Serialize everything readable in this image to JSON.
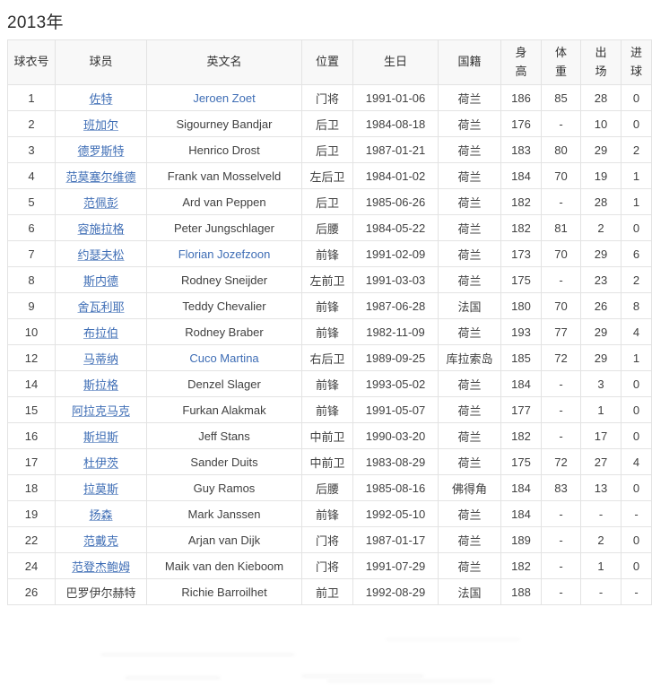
{
  "page": {
    "title": "2013年"
  },
  "colors": {
    "link": "#3e6db5",
    "header_bg": "#f8f8f8",
    "border": "#e3e3e3",
    "text": "#404040",
    "title": "#2b2b2b"
  },
  "table": {
    "columns": [
      {
        "key": "no",
        "label": "球衣号",
        "two_line": false
      },
      {
        "key": "player",
        "label": "球员",
        "two_line": false
      },
      {
        "key": "en_name",
        "label": "英文名",
        "two_line": false
      },
      {
        "key": "pos",
        "label": "位置",
        "two_line": false
      },
      {
        "key": "birth",
        "label": "生日",
        "two_line": false
      },
      {
        "key": "nat",
        "label": "国籍",
        "two_line": false
      },
      {
        "key": "height",
        "label": "身高",
        "two_line": true
      },
      {
        "key": "weight",
        "label": "体重",
        "two_line": true
      },
      {
        "key": "apps",
        "label": "出场",
        "two_line": true
      },
      {
        "key": "goals",
        "label": "进球",
        "two_line": true
      }
    ],
    "rows": [
      {
        "no": "1",
        "player": "佐特",
        "player_link": true,
        "en_name": "Jeroen Zoet",
        "en_name_link": true,
        "pos": "门将",
        "birth": "1991-01-06",
        "nat": "荷兰",
        "height": "186",
        "weight": "85",
        "apps": "28",
        "goals": "0"
      },
      {
        "no": "2",
        "player": "班加尔",
        "player_link": true,
        "en_name": "Sigourney Bandjar",
        "en_name_link": false,
        "pos": "后卫",
        "birth": "1984-08-18",
        "nat": "荷兰",
        "height": "176",
        "weight": "-",
        "apps": "10",
        "goals": "0"
      },
      {
        "no": "3",
        "player": "德罗斯特",
        "player_link": true,
        "en_name": "Henrico Drost",
        "en_name_link": false,
        "pos": "后卫",
        "birth": "1987-01-21",
        "nat": "荷兰",
        "height": "183",
        "weight": "80",
        "apps": "29",
        "goals": "2"
      },
      {
        "no": "4",
        "player": "范莫塞尔维德",
        "player_link": true,
        "en_name": "Frank van Mosselveld",
        "en_name_link": false,
        "pos": "左后卫",
        "birth": "1984-01-02",
        "nat": "荷兰",
        "height": "184",
        "weight": "70",
        "apps": "19",
        "goals": "1"
      },
      {
        "no": "5",
        "player": "范佩彭",
        "player_link": true,
        "en_name": "Ard van Peppen",
        "en_name_link": false,
        "pos": "后卫",
        "birth": "1985-06-26",
        "nat": "荷兰",
        "height": "182",
        "weight": "-",
        "apps": "28",
        "goals": "1"
      },
      {
        "no": "6",
        "player": "容施拉格",
        "player_link": true,
        "en_name": "Peter Jungschlager",
        "en_name_link": false,
        "pos": "后腰",
        "birth": "1984-05-22",
        "nat": "荷兰",
        "height": "182",
        "weight": "81",
        "apps": "2",
        "goals": "0"
      },
      {
        "no": "7",
        "player": "约瑟夫松",
        "player_link": true,
        "en_name": "Florian Jozefzoon",
        "en_name_link": true,
        "pos": "前锋",
        "birth": "1991-02-09",
        "nat": "荷兰",
        "height": "173",
        "weight": "70",
        "apps": "29",
        "goals": "6"
      },
      {
        "no": "8",
        "player": "斯内德",
        "player_link": true,
        "en_name": "Rodney Sneijder",
        "en_name_link": false,
        "pos": "左前卫",
        "birth": "1991-03-03",
        "nat": "荷兰",
        "height": "175",
        "weight": "-",
        "apps": "23",
        "goals": "2"
      },
      {
        "no": "9",
        "player": "舍瓦利耶",
        "player_link": true,
        "en_name": "Teddy Chevalier",
        "en_name_link": false,
        "pos": "前锋",
        "birth": "1987-06-28",
        "nat": "法国",
        "height": "180",
        "weight": "70",
        "apps": "26",
        "goals": "8"
      },
      {
        "no": "10",
        "player": "布拉伯",
        "player_link": true,
        "en_name": "Rodney Braber",
        "en_name_link": false,
        "pos": "前锋",
        "birth": "1982-11-09",
        "nat": "荷兰",
        "height": "193",
        "weight": "77",
        "apps": "29",
        "goals": "4"
      },
      {
        "no": "12",
        "player": "马蒂纳",
        "player_link": true,
        "en_name": "Cuco Martina",
        "en_name_link": true,
        "pos": "右后卫",
        "birth": "1989-09-25",
        "nat": "库拉索岛",
        "height": "185",
        "weight": "72",
        "apps": "29",
        "goals": "1"
      },
      {
        "no": "14",
        "player": "斯拉格",
        "player_link": true,
        "en_name": "Denzel Slager",
        "en_name_link": false,
        "pos": "前锋",
        "birth": "1993-05-02",
        "nat": "荷兰",
        "height": "184",
        "weight": "-",
        "apps": "3",
        "goals": "0"
      },
      {
        "no": "15",
        "player": "阿拉克马克",
        "player_link": true,
        "en_name": "Furkan Alakmak",
        "en_name_link": false,
        "pos": "前锋",
        "birth": "1991-05-07",
        "nat": "荷兰",
        "height": "177",
        "weight": "-",
        "apps": "1",
        "goals": "0"
      },
      {
        "no": "16",
        "player": "斯坦斯",
        "player_link": true,
        "en_name": "Jeff Stans",
        "en_name_link": false,
        "pos": "中前卫",
        "birth": "1990-03-20",
        "nat": "荷兰",
        "height": "182",
        "weight": "-",
        "apps": "17",
        "goals": "0"
      },
      {
        "no": "17",
        "player": "杜伊茨",
        "player_link": true,
        "en_name": "Sander Duits",
        "en_name_link": false,
        "pos": "中前卫",
        "birth": "1983-08-29",
        "nat": "荷兰",
        "height": "175",
        "weight": "72",
        "apps": "27",
        "goals": "4"
      },
      {
        "no": "18",
        "player": "拉莫斯",
        "player_link": true,
        "en_name": "Guy Ramos",
        "en_name_link": false,
        "pos": "后腰",
        "birth": "1985-08-16",
        "nat": "佛得角",
        "height": "184",
        "weight": "83",
        "apps": "13",
        "goals": "0"
      },
      {
        "no": "19",
        "player": "扬森",
        "player_link": true,
        "en_name": "Mark Janssen",
        "en_name_link": false,
        "pos": "前锋",
        "birth": "1992-05-10",
        "nat": "荷兰",
        "height": "184",
        "weight": "-",
        "apps": "-",
        "goals": "-"
      },
      {
        "no": "22",
        "player": "范戴克",
        "player_link": true,
        "en_name": "Arjan van Dijk",
        "en_name_link": false,
        "pos": "门将",
        "birth": "1987-01-17",
        "nat": "荷兰",
        "height": "189",
        "weight": "-",
        "apps": "2",
        "goals": "0"
      },
      {
        "no": "24",
        "player": "范登杰鲍姆",
        "player_link": true,
        "en_name": "Maik van den Kieboom",
        "en_name_link": false,
        "pos": "门将",
        "birth": "1991-07-29",
        "nat": "荷兰",
        "height": "182",
        "weight": "-",
        "apps": "1",
        "goals": "0"
      },
      {
        "no": "26",
        "player": "巴罗伊尔赫特",
        "player_link": false,
        "en_name": "Richie Barroilhet",
        "en_name_link": false,
        "pos": "前卫",
        "birth": "1992-08-29",
        "nat": "法国",
        "height": "188",
        "weight": "-",
        "apps": "-",
        "goals": "-"
      }
    ]
  }
}
